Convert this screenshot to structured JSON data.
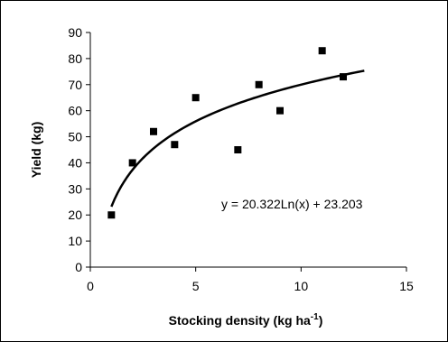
{
  "chart_data": {
    "type": "scatter",
    "xlabel": "Stocking density (kg ha",
    "xlabel_sup": "-1",
    "xlabel_tail": ")",
    "ylabel": "Yield (kg)",
    "xlim": [
      0,
      15
    ],
    "ylim": [
      0,
      90
    ],
    "x_ticks": [
      0,
      5,
      10,
      15
    ],
    "y_ticks": [
      0,
      10,
      20,
      30,
      40,
      50,
      60,
      70,
      80,
      90
    ],
    "points": [
      {
        "x": 1,
        "y": 20
      },
      {
        "x": 2,
        "y": 40
      },
      {
        "x": 3,
        "y": 52
      },
      {
        "x": 4,
        "y": 47
      },
      {
        "x": 5,
        "y": 65
      },
      {
        "x": 7,
        "y": 45
      },
      {
        "x": 8,
        "y": 70
      },
      {
        "x": 9,
        "y": 60
      },
      {
        "x": 11,
        "y": 83
      },
      {
        "x": 12,
        "y": 73
      }
    ],
    "trendline": {
      "type": "logarithmic",
      "a": 20.322,
      "b": 23.203,
      "x_range": [
        1,
        13
      ],
      "equation_label": "y = 20.322Ln(x) + 23.203"
    },
    "grid": false,
    "legend": "none"
  }
}
